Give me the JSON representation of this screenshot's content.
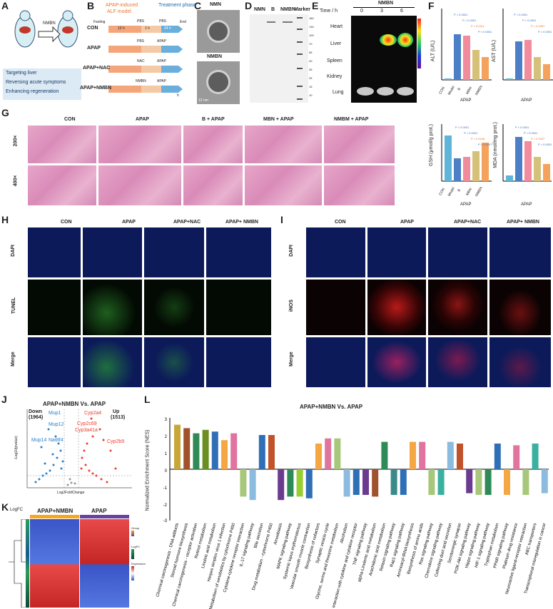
{
  "panels": {
    "A": "A",
    "B": "B",
    "C": "C",
    "D": "D",
    "E": "E",
    "F": "F",
    "G": "G",
    "H": "H",
    "I": "I",
    "J": "J",
    "K": "K",
    "L": "L"
  },
  "A": {
    "arrow_label": "NMBN",
    "bullets": [
      "Targeting liver",
      "Reversing acute symptoms",
      "Enhancing regeneration"
    ]
  },
  "B": {
    "header1": "APAP-induced",
    "header2": "ALF model",
    "header3": "Treatment phase",
    "groups": [
      "CON",
      "APAP",
      "APAP+NAC",
      "APAP+NMBN"
    ],
    "fasting": "Fasting",
    "end": "End",
    "t1": "12 h",
    "t2": "1 h",
    "t3": "24 h",
    "pbs": "PBS",
    "apap": "APAP",
    "nac": "NAC",
    "nmbn": "NMBN",
    "unit": "h"
  },
  "C": {
    "top": "NMN",
    "bottom": "NMBN",
    "scale": "12 nm"
  },
  "D": {
    "lanes": [
      "NMN",
      "B",
      "NMBN",
      "Marker"
    ],
    "kda": [
      "180",
      "130",
      "100",
      "70",
      "55",
      "40",
      "35",
      "25",
      "15",
      "10"
    ]
  },
  "E": {
    "title": "NMBN",
    "time_label": "Time / h",
    "times": [
      "0",
      "3",
      "6"
    ],
    "organs": [
      "Heart",
      "Liver",
      "Spleen",
      "Kidney",
      "Lung"
    ]
  },
  "F": {
    "alt_label": "ALT (U/L)",
    "ast_label": "AST (U/L)",
    "groups": [
      "CON",
      "Model",
      "B",
      "MBN",
      "NMBN"
    ],
    "apap": "APAP",
    "pvals_alt": [
      "P < 0.0001",
      "P < 0.0001",
      "P = 0.0111",
      "P < 0.0001"
    ],
    "pvals_ast": [
      "P < 0.0001",
      "P < 0.0001",
      "P = 0.0267",
      "P < 0.0001"
    ]
  },
  "G": {
    "cols": [
      "CON",
      "APAP",
      "B + APAP",
      "MBN + APAP",
      "NMBM + APAP"
    ],
    "rows": [
      "200×",
      "400×"
    ],
    "gsh_label": "GSH (μmol/g prot.)",
    "mda_label": "MDA (nmol/mg prot.)",
    "groups": [
      "CON",
      "Model",
      "B",
      "MBN",
      "NMBN"
    ],
    "apap": "APAP",
    "pvals_gsh": [
      "P < 0.0001",
      "P < 0.0001",
      "P = 0.0146",
      "P = 0.0007"
    ],
    "pvals_mda": [
      "P < 0.0001",
      "P < 0.0001",
      "P = 0.0247",
      "P = 0.0001"
    ]
  },
  "H": {
    "cols": [
      "CON",
      "APAP",
      "APAP+NAC",
      "APAP+ NMBN"
    ],
    "rows": [
      "DAPI",
      "TUNEL",
      "Merge"
    ]
  },
  "I": {
    "cols": [
      "CON",
      "APAP",
      "APAP+NAC",
      "APAP+ NMBN"
    ],
    "rows": [
      "DAPI",
      "iNOS",
      "Merge"
    ]
  },
  "J": {
    "title": "APAP+NMBN Vs. APAP",
    "down": "Down",
    "down_n": "(1964)",
    "up": "Up",
    "up_n": "(1513)",
    "xlabel": "Log2FoldChange",
    "ylabel": "-Log10(pvalue)",
    "genes_down": [
      "Mup1",
      "Mup12",
      "Nat8f4",
      "Mup14"
    ],
    "genes_up": [
      "Cyp2a4",
      "Cyp2c69",
      "Cyp3a41a",
      "Cyp2b9"
    ]
  },
  "K": {
    "groups": [
      "APAP+NMBN",
      "APAP"
    ],
    "logfc": "LogFC",
    "legend_group": "Group",
    "legend_logfc": "LogFC",
    "legend_expr": "Expression"
  },
  "L": {
    "title": "APAP+NMBN Vs. APAP",
    "ylabel": "Normalized Enrichment Score (NES)"
  }
}
